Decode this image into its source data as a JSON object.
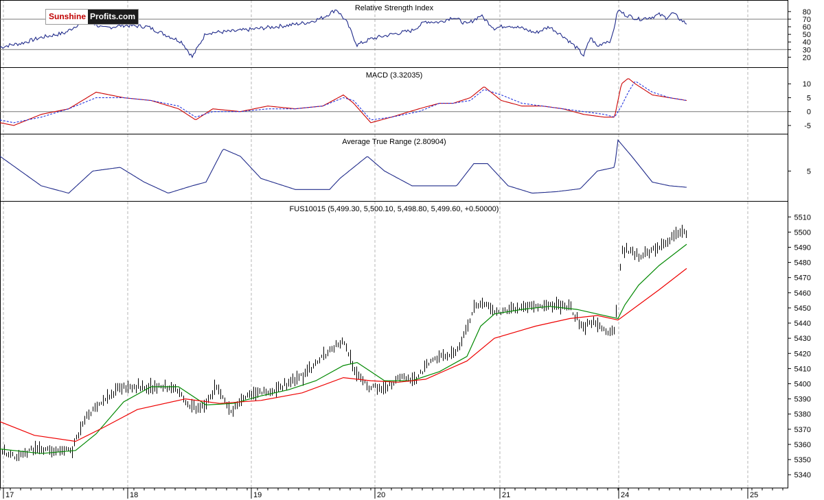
{
  "logo": {
    "part1": "Sunshine",
    "part2": "Profits.com"
  },
  "colors": {
    "background": "#ffffff",
    "frame": "#000000",
    "grid": "#b5b5b5",
    "indicator_line": "#1f2a8a",
    "macd_line": "#cc0000",
    "signal_line": "#2233dd",
    "price_bars": "#000000",
    "ma_short": "#008800",
    "ma_long": "#ee0000"
  },
  "x_axis": {
    "tick_labels": [
      "17",
      "18",
      "19",
      "20",
      "21",
      "24",
      "25"
    ]
  },
  "chart_data": [
    {
      "type": "line",
      "title": "Relative Strength Index",
      "ylim": [
        14,
        88
      ],
      "yticks": [
        20,
        30,
        40,
        50,
        60,
        70,
        80
      ],
      "reference_lines": [
        30,
        70
      ],
      "x": [
        0,
        15,
        30,
        60,
        95,
        125,
        150,
        180,
        215,
        250,
        265,
        280,
        300,
        340,
        380,
        420,
        450,
        470,
        490,
        505,
        520,
        540,
        570,
        600,
        620,
        640,
        660,
        680,
        700,
        720,
        740,
        760,
        780,
        800,
        820,
        840,
        850,
        860,
        870,
        880,
        890,
        900,
        910,
        930,
        950,
        960,
        970,
        980,
        990,
        1000
      ],
      "series": [
        {
          "values": [
            33,
            36,
            38,
            46,
            52,
            70,
            58,
            62,
            60,
            46,
            40,
            20,
            52,
            54,
            58,
            62,
            66,
            72,
            83,
            66,
            36,
            44,
            50,
            55,
            67,
            66,
            73,
            63,
            75,
            58,
            62,
            58,
            52,
            60,
            48,
            32,
            22,
            46,
            34,
            40,
            42,
            82,
            76,
            70,
            73,
            76,
            72,
            78,
            70,
            64
          ]
        }
      ]
    },
    {
      "type": "line",
      "title": "MACD (3.32035)",
      "ylim": [
        -6,
        14
      ],
      "yticks": [
        -5,
        0,
        5,
        10
      ],
      "reference_lines": [
        0
      ],
      "x": [
        0,
        20,
        60,
        100,
        140,
        180,
        220,
        260,
        285,
        310,
        350,
        390,
        430,
        470,
        500,
        515,
        540,
        570,
        610,
        640,
        660,
        685,
        705,
        730,
        760,
        790,
        820,
        850,
        880,
        895,
        905,
        915,
        925,
        950,
        975,
        1000
      ],
      "series": [
        {
          "name": "MACD",
          "values": [
            -4,
            -5,
            -1,
            1,
            7,
            5,
            4,
            1,
            -3,
            1,
            0,
            2,
            1,
            2,
            6,
            3,
            -4,
            -2,
            1,
            3,
            3,
            5,
            9,
            4,
            2,
            2,
            1,
            -1,
            -2,
            -2,
            10,
            12,
            10,
            6,
            5,
            4
          ]
        },
        {
          "name": "Signal",
          "values": [
            -3,
            -4,
            -2,
            1,
            5,
            5,
            4,
            2,
            -2,
            0,
            0,
            1,
            1,
            2,
            5,
            4,
            -3,
            -2,
            0,
            3,
            3,
            4,
            8,
            6,
            3,
            2,
            1,
            0,
            -1,
            -2,
            2,
            7,
            11,
            7,
            5,
            4
          ]
        }
      ]
    },
    {
      "type": "line",
      "title": "Average True Range (2.80904)",
      "ylim": [
        1.5,
        9.5
      ],
      "yticks": [
        5
      ],
      "x": [
        0,
        30,
        60,
        100,
        135,
        175,
        210,
        245,
        280,
        300,
        325,
        350,
        380,
        430,
        480,
        495,
        535,
        560,
        600,
        640,
        665,
        690,
        710,
        740,
        775,
        810,
        845,
        870,
        895,
        900,
        920,
        950,
        975,
        1000
      ],
      "series": [
        {
          "values": [
            7,
            5,
            3,
            2,
            5,
            5.5,
            3.5,
            2,
            3,
            3.5,
            8,
            7,
            4,
            2.5,
            2.5,
            4,
            7,
            5,
            3,
            3,
            3,
            6,
            6,
            3,
            2,
            2.2,
            2.6,
            5,
            5.5,
            9.2,
            7,
            3.5,
            3,
            2.8
          ]
        }
      ]
    },
    {
      "type": "bar",
      "subtype": "ohlc",
      "title": "FUS10015 (5,499.30, 5,500.10, 5,498.80, 5,499.60, +0.50000)",
      "ylim": [
        5336,
        5516
      ],
      "yticks": [
        5340,
        5350,
        5360,
        5370,
        5380,
        5390,
        5400,
        5410,
        5420,
        5430,
        5440,
        5450,
        5460,
        5470,
        5480,
        5490,
        5500,
        5510
      ],
      "price_path_x": [
        0,
        25,
        55,
        85,
        105,
        120,
        140,
        175,
        210,
        255,
        270,
        290,
        315,
        335,
        360,
        400,
        440,
        480,
        500,
        515,
        535,
        560,
        580,
        605,
        625,
        665,
        690,
        705,
        720,
        760,
        795,
        830,
        845,
        865,
        885,
        895,
        905,
        930,
        960,
        985,
        1000
      ],
      "price_path_values": [
        5355,
        5352,
        5358,
        5355,
        5356,
        5375,
        5385,
        5398,
        5398,
        5398,
        5388,
        5382,
        5398,
        5382,
        5392,
        5396,
        5405,
        5422,
        5428,
        5410,
        5398,
        5397,
        5404,
        5402,
        5415,
        5420,
        5450,
        5453,
        5447,
        5450,
        5452,
        5451,
        5438,
        5440,
        5433,
        5437,
        5489,
        5485,
        5490,
        5500,
        5499
      ],
      "series": [
        {
          "name": "",
          "x": [
            0,
            60,
            110,
            140,
            180,
            220,
            260,
            300,
            340,
            380,
            420,
            460,
            500,
            520,
            540,
            560,
            600,
            640,
            680,
            700,
            720,
            760,
            800,
            840,
            870,
            900,
            910,
            930,
            960,
            1000
          ],
          "values": [
            5357,
            5354,
            5356,
            5367,
            5388,
            5398,
            5398,
            5386,
            5387,
            5392,
            5396,
            5402,
            5412,
            5414,
            5408,
            5402,
            5402,
            5408,
            5418,
            5438,
            5446,
            5449,
            5451,
            5449,
            5446,
            5443,
            5452,
            5465,
            5478,
            5492
          ]
        },
        {
          "name": "",
          "x": [
            0,
            50,
            110,
            150,
            200,
            270,
            320,
            380,
            440,
            500,
            540,
            580,
            620,
            680,
            720,
            780,
            830,
            870,
            900,
            930,
            960,
            1000
          ],
          "values": [
            5375,
            5366,
            5362,
            5371,
            5383,
            5390,
            5387,
            5389,
            5394,
            5404,
            5402,
            5401,
            5403,
            5415,
            5430,
            5438,
            5443,
            5445,
            5442,
            5452,
            5462,
            5476
          ]
        }
      ]
    }
  ]
}
